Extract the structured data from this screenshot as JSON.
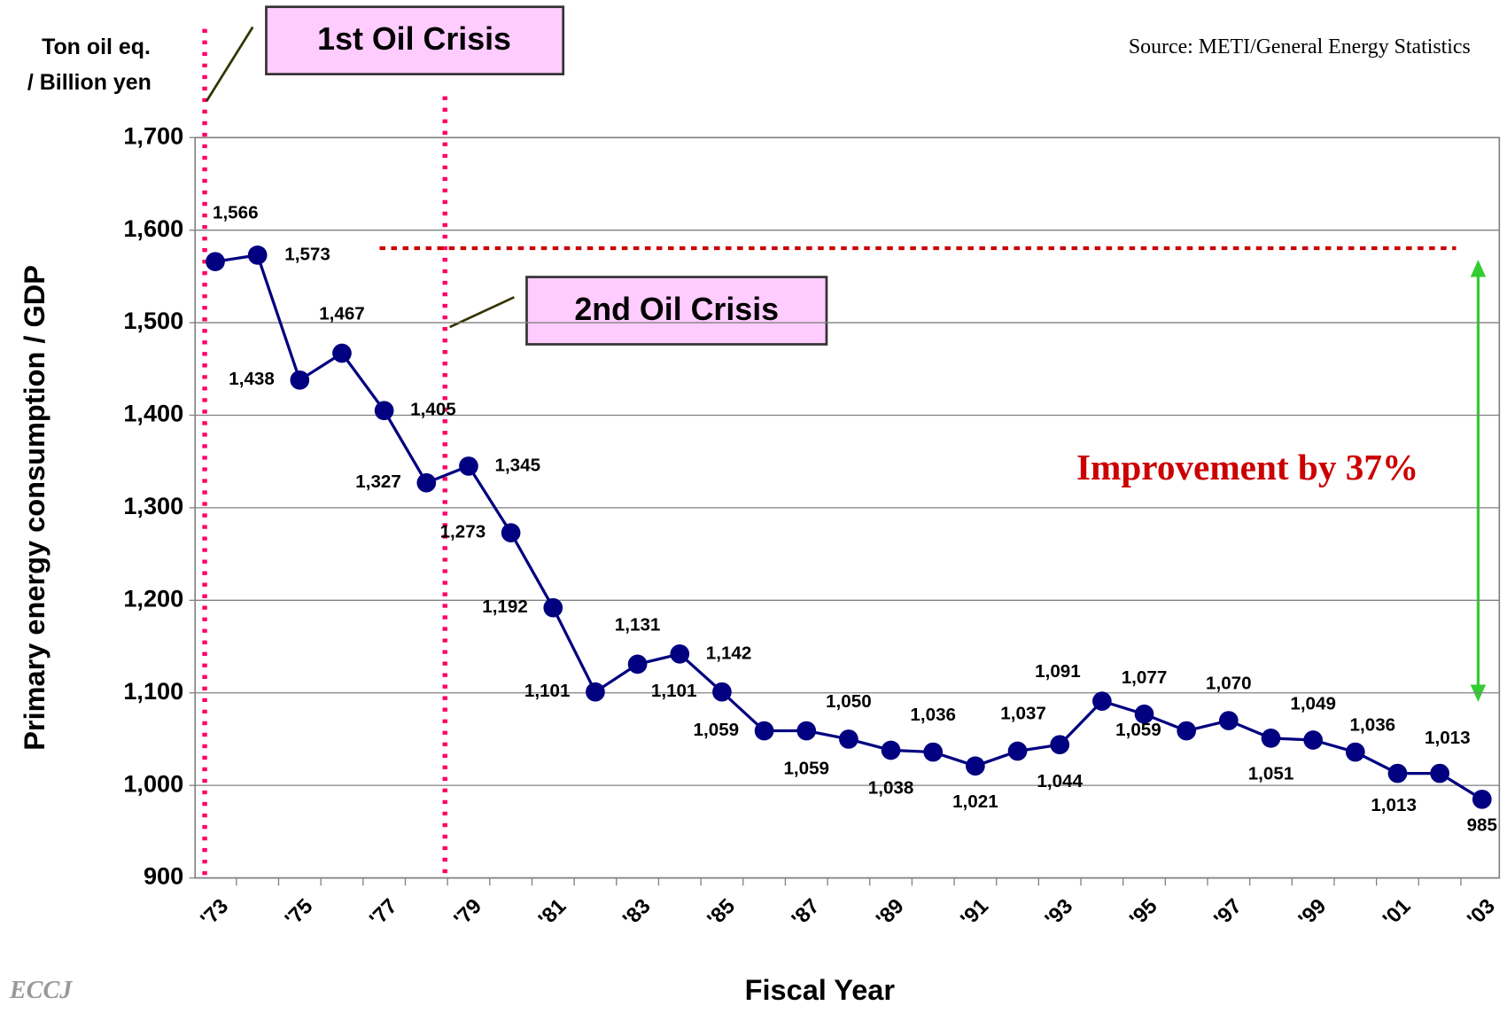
{
  "chart_data": {
    "type": "line",
    "title": null,
    "source": "Source: METI/General Energy Statistics",
    "brand": "ECCJ",
    "unit_label": [
      "Ton oil eq.",
      "/ Billion yen"
    ],
    "y_label": "Primary energy consumption / GDP",
    "x_label": "Fiscal Year",
    "annotations": [
      "1st Oil Crisis",
      "2nd Oil Crisis",
      "Improvement by 37%"
    ],
    "categories": [
      "'73",
      null,
      "'75",
      null,
      "'77",
      null,
      "'79",
      null,
      "'81",
      null,
      "'83",
      null,
      "'85",
      null,
      "'87",
      null,
      "'89",
      null,
      "'91",
      null,
      "'93",
      null,
      "'95",
      null,
      "'97",
      null,
      "'99",
      null,
      "'01",
      null,
      "'03"
    ],
    "series": [
      {
        "name": "Primary energy consumption / GDP",
        "color": "#000080",
        "values": [
          1566,
          1573,
          1438,
          1467,
          1405,
          1327,
          1345,
          1273,
          1192,
          1101,
          1131,
          1142,
          1101,
          1059,
          1059,
          1050,
          1038,
          1036,
          1021,
          1037,
          1044,
          1091,
          1077,
          1059,
          1070,
          1051,
          1049,
          1036,
          1013,
          1013,
          985
        ],
        "value_labels": [
          "1,566",
          "1,573",
          "1,438",
          "1,467",
          "1,405",
          "1,327",
          "1,345",
          "1,273",
          "1,192",
          "1,101",
          "1,131",
          "1,142",
          "1,101",
          "1,059",
          "1,059",
          "1,050",
          "1,038",
          "1,036",
          "1,021",
          "1,037",
          "1,044",
          "1,091",
          "1,077",
          "1,059",
          "1,070",
          "1,051",
          "1,049",
          "1,036",
          "1,013",
          "1,013",
          "985"
        ]
      }
    ],
    "ylim": [
      900,
      1700
    ],
    "yticks": [
      900,
      {
        "value": 1000,
        "label": "1,000"
      },
      {
        "value": 1100,
        "label": "1,100"
      },
      {
        "value": 1200,
        "label": "1,200"
      },
      {
        "value": 1300,
        "label": "1,300"
      },
      {
        "value": 1400,
        "label": "1,400"
      },
      {
        "value": 1500,
        "label": "1,500"
      },
      {
        "value": 1600,
        "label": "1,600"
      },
      {
        "value": 1700,
        "label": "1,700"
      }
    ],
    "grid": true
  }
}
